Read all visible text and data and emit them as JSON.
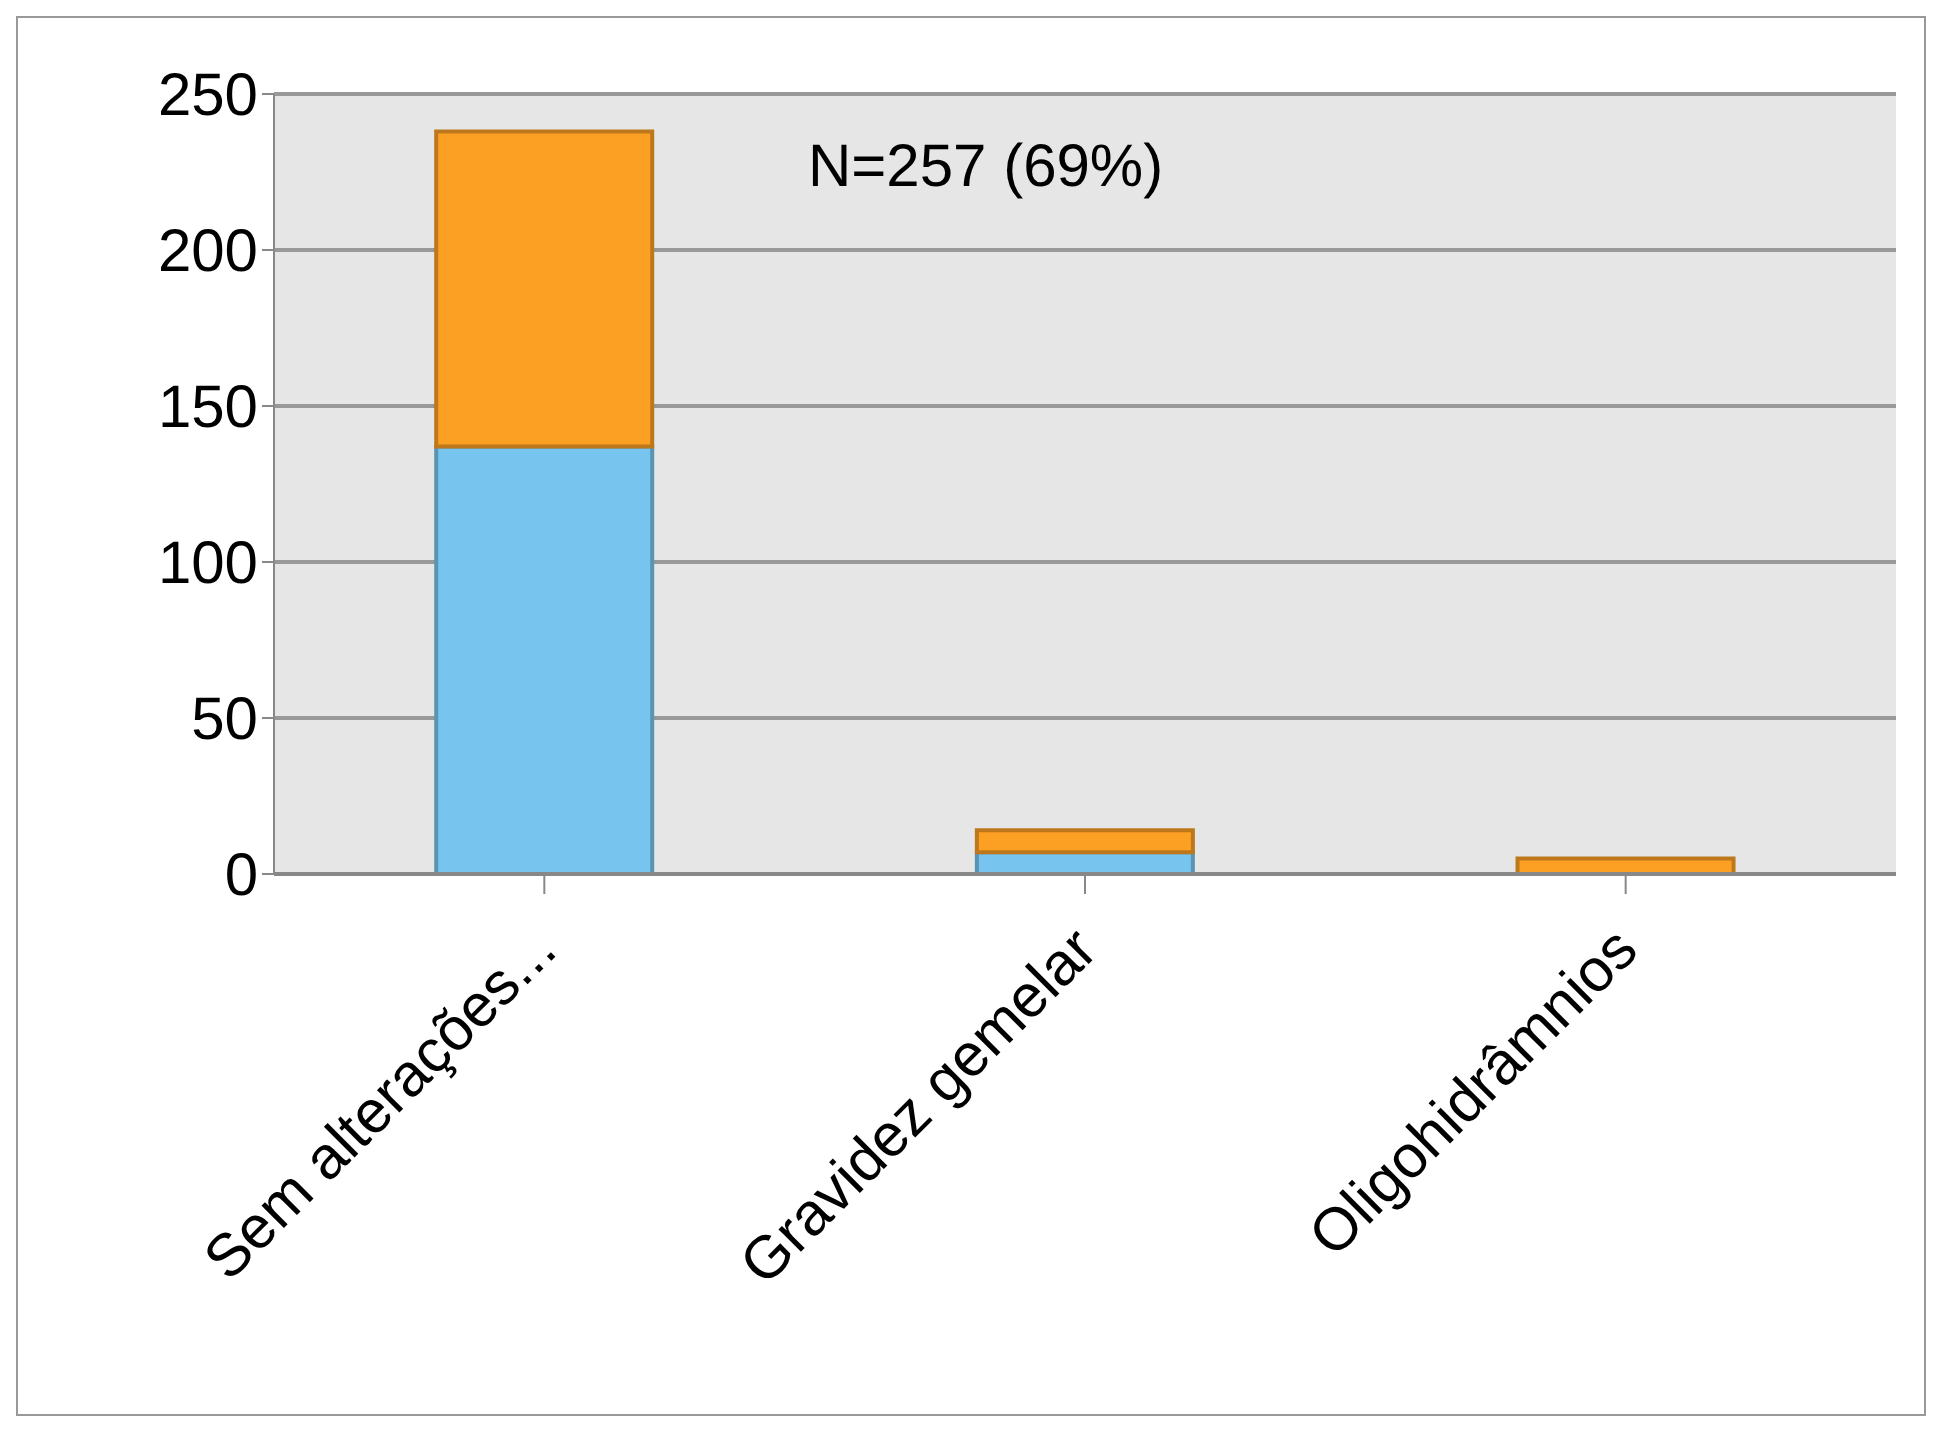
{
  "chart_data": {
    "type": "bar",
    "stacked": true,
    "categories": [
      "Sem alterações...",
      "Gravidez gemelar",
      "Oligohidrâmnios"
    ],
    "series": [
      {
        "color": "#77c5ee",
        "values": [
          137,
          7,
          0
        ]
      },
      {
        "color": "#fca024",
        "values": [
          101,
          7,
          5
        ]
      }
    ],
    "ylim": [
      0,
      250
    ],
    "yticks": [
      0,
      50,
      100,
      150,
      200,
      250
    ],
    "grid": "y",
    "annotations": [
      "N=257 (69%)"
    ]
  }
}
